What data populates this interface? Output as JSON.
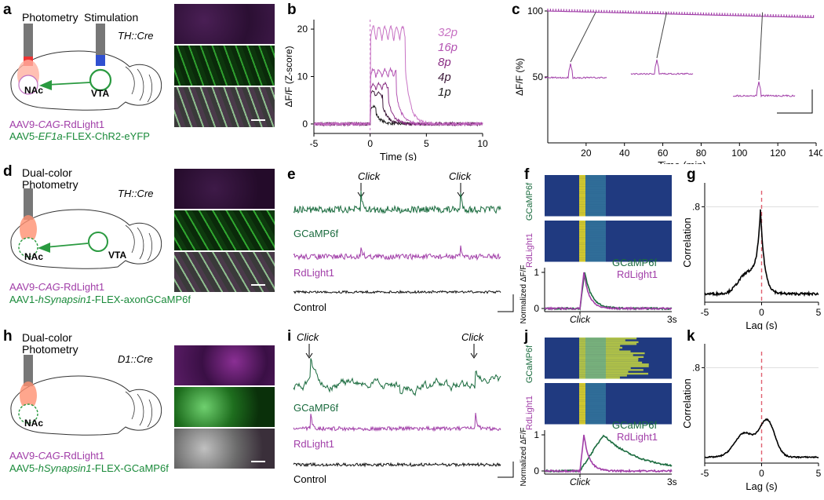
{
  "panels": {
    "a": {
      "letter": "a",
      "photometry": "Photometry",
      "stimulation": "Stimulation",
      "cre": "TH::Cre",
      "region1": "NAc",
      "region2": "VTA",
      "virus1_pre": "AAV9-",
      "virus1_ital": "CAG",
      "virus1_post": "-RdLight1",
      "virus2_pre": "AAV5-",
      "virus2_ital": "EF1a",
      "virus2_post": "-FLEX-ChR2-eYFP"
    },
    "b": {
      "letter": "b",
      "ylabel": "ΔF/F (Z-score)",
      "xlabel": "Time (s)",
      "legend": [
        "32p",
        "16p",
        "8p",
        "4p",
        "1p"
      ]
    },
    "c": {
      "letter": "c",
      "ylabel": "ΔF/F (%)",
      "xlabel": "Time (min)"
    },
    "d": {
      "letter": "d",
      "photometry": "Dual-color\nPhotometry",
      "cre": "TH::Cre",
      "region1": "NAc",
      "region2": "VTA",
      "virus1_pre": "AAV9-",
      "virus1_ital": "CAG",
      "virus1_post": "-RdLight1",
      "virus2_pre": "AAV1-",
      "virus2_ital": "hSynapsin1",
      "virus2_post": "-FLEX-axonGCaMP6f"
    },
    "e": {
      "letter": "e",
      "click1": "Click",
      "click2": "Click",
      "trace1": "GCaMP6f",
      "trace2": "RdLight1",
      "trace3": "Control"
    },
    "f": {
      "letter": "f",
      "row_top": "GCaMP6f",
      "row_bot": "RdLight1",
      "ylabel": "Normalized ΔF/F",
      "leg1": "GCaMP6f",
      "leg2": "RdLight1",
      "xtick_end": "3s",
      "xlabel": "Click"
    },
    "g": {
      "letter": "g",
      "ylabel": "Correlation",
      "xlabel": "Lag (s)"
    },
    "h": {
      "letter": "h",
      "photometry": "Dual-color\nPhotometry",
      "cre": "D1::Cre",
      "region1": "NAc",
      "virus1_pre": "AAV9-",
      "virus1_ital": "CAG",
      "virus1_post": "-RdLight1",
      "virus2_pre": "AAV5-",
      "virus2_ital": "hSynapsin1",
      "virus2_post": "-FLEX-GCaMP6f"
    },
    "i": {
      "letter": "i",
      "click1": "Click",
      "click2": "Click",
      "trace1": "GCaMP6f",
      "trace2": "RdLight1",
      "trace3": "Control"
    },
    "j": {
      "letter": "j",
      "row_top": "GCaMP6f",
      "row_bot": "RdLight1",
      "ylabel": "Normalized ΔF/F",
      "leg1": "GCaMP6f",
      "leg2": "RdLight1",
      "xtick_end": "3s",
      "xlabel": "Click"
    },
    "k": {
      "letter": "k",
      "ylabel": "Correlation",
      "xlabel": "Lag (s)"
    }
  },
  "chart_data": [
    {
      "id": "b",
      "type": "line",
      "title": "",
      "xlabel": "Time (s)",
      "ylabel": "ΔF/F (Z-score)",
      "xlim": [
        -5,
        10
      ],
      "ylim": [
        -2,
        22
      ],
      "xticks": [
        -5,
        0,
        5,
        10
      ],
      "yticks": [
        0,
        10,
        20
      ],
      "series": [
        {
          "name": "32p",
          "color": "#c873c4",
          "peak": 20.5,
          "duration": 3.1
        },
        {
          "name": "16p",
          "color": "#b455b3",
          "peak": 11.5,
          "duration": 2.3
        },
        {
          "name": "8p",
          "color": "#8a2f84",
          "peak": 8.5,
          "duration": 1.6
        },
        {
          "name": "4p",
          "color": "#3d1a3a",
          "peak": 6.8,
          "duration": 1.1
        },
        {
          "name": "1p",
          "color": "#222222",
          "peak": 3.8,
          "duration": 0.5
        }
      ]
    },
    {
      "id": "c",
      "type": "line",
      "title": "",
      "xlabel": "Time (min)",
      "ylabel": "ΔF/F (%)",
      "xlim": [
        0,
        140
      ],
      "ylim": [
        0,
        100
      ],
      "xticks": [
        20,
        40,
        60,
        80,
        100,
        120,
        140
      ],
      "yticks": [
        50,
        100
      ],
      "series": [
        {
          "name": "peak amplitude",
          "color": "#a13ea8",
          "x": [
            0,
            140
          ],
          "y": [
            100,
            95
          ]
        }
      ]
    },
    {
      "id": "g",
      "type": "line",
      "xlabel": "Lag (s)",
      "ylabel": "Correlation",
      "xlim": [
        -5,
        5
      ],
      "ylim": [
        0,
        1
      ],
      "xticks": [
        -5,
        0,
        5
      ],
      "yticks_labels": [
        ".8"
      ],
      "peak_lag": -0.1,
      "peak_value": 0.85
    },
    {
      "id": "k",
      "type": "line",
      "xlabel": "Lag (s)",
      "ylabel": "Correlation",
      "xlim": [
        -5,
        5
      ],
      "ylim": [
        0,
        1
      ],
      "xticks": [
        -5,
        0,
        5
      ],
      "yticks_labels": [
        ".8"
      ],
      "peak_lag": 0.5,
      "peak_value": 0.45
    },
    {
      "id": "f",
      "type": "line",
      "xlabel": "Click",
      "ylabel": "Normalized ΔF/F",
      "yticks": [
        0,
        1
      ],
      "xtick_end": "3s",
      "series": [
        {
          "name": "GCaMP6f",
          "color": "#1a6b3e"
        },
        {
          "name": "RdLight1",
          "color": "#a13ea8"
        }
      ]
    },
    {
      "id": "j",
      "type": "line",
      "xlabel": "Click",
      "ylabel": "Normalized ΔF/F",
      "yticks": [
        0,
        1
      ],
      "xtick_end": "3s",
      "series": [
        {
          "name": "GCaMP6f",
          "color": "#1a6b3e"
        },
        {
          "name": "RdLight1",
          "color": "#a13ea8"
        }
      ]
    }
  ],
  "axis_ticks": {
    "b_x": [
      "-5",
      "0",
      "5",
      "10"
    ],
    "b_y": [
      "0",
      "10",
      "20"
    ],
    "c_x": [
      "20",
      "40",
      "60",
      "80",
      "100",
      "120",
      "140"
    ],
    "c_y": [
      "50",
      "100"
    ],
    "g_x": [
      "-5",
      "0",
      "5"
    ],
    "g_y": ".8",
    "k_x": [
      "-5",
      "0",
      "5"
    ],
    "k_y": ".8",
    "f_y": [
      "0",
      "1"
    ],
    "j_y": [
      "0",
      "1"
    ]
  },
  "colors": {
    "magenta": "#a13ea8",
    "green": "#1a8a3a",
    "dark_green": "#1a6b3e",
    "red_dash": "#e06070"
  }
}
